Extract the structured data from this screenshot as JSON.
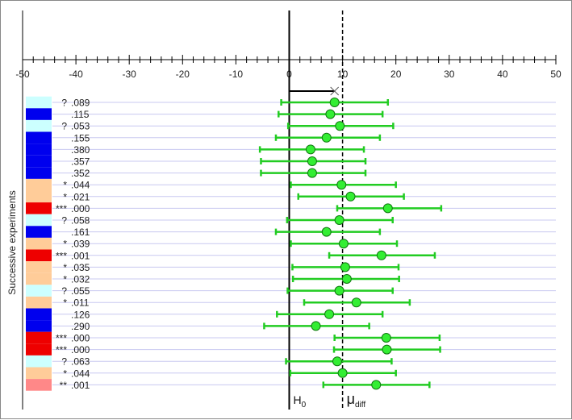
{
  "chart_data": {
    "type": "scatter",
    "x_axis": {
      "range": [
        -50,
        50
      ],
      "tick_labels": [
        "-50",
        "-40",
        "-30",
        "-20",
        "-10",
        "0",
        "10",
        "20",
        "30",
        "40",
        "50"
      ],
      "major_step": 10,
      "minor_step": 2
    },
    "ylabel": "Successive experiments",
    "reference_lines": {
      "h0": {
        "value": 0,
        "label": "H",
        "subscript": "0"
      },
      "mu_diff": {
        "value": 10,
        "label": "μ",
        "subscript": "diff"
      }
    },
    "moe_marker": {
      "from": 0,
      "to": 8.5
    },
    "status_colors": {
      "question": "#ccffff",
      "ns": "#0000ee",
      "one_star": "#ffcc99",
      "three_star": "#ee0000",
      "two_star": "#ff8888"
    },
    "experiments": [
      {
        "mark": "?",
        "p": ".089",
        "mean": 8.5,
        "low": -1.5,
        "high": 18.5,
        "status": "question"
      },
      {
        "mark": "",
        "p": ".115",
        "mean": 7.7,
        "low": -2.0,
        "high": 17.5,
        "status": "ns"
      },
      {
        "mark": "?",
        "p": ".053",
        "mean": 9.5,
        "low": -0.2,
        "high": 19.5,
        "status": "question"
      },
      {
        "mark": "",
        "p": ".155",
        "mean": 7.0,
        "low": -2.5,
        "high": 17.0,
        "status": "ns"
      },
      {
        "mark": "",
        "p": ".380",
        "mean": 4.0,
        "low": -5.5,
        "high": 14.0,
        "status": "ns"
      },
      {
        "mark": "",
        "p": ".357",
        "mean": 4.3,
        "low": -5.3,
        "high": 14.3,
        "status": "ns"
      },
      {
        "mark": "",
        "p": ".352",
        "mean": 4.3,
        "low": -5.3,
        "high": 14.3,
        "status": "ns"
      },
      {
        "mark": "*",
        "p": ".044",
        "mean": 9.8,
        "low": 0.3,
        "high": 20.0,
        "status": "one_star"
      },
      {
        "mark": "*",
        "p": ".021",
        "mean": 11.5,
        "low": 1.7,
        "high": 21.5,
        "status": "one_star"
      },
      {
        "mark": "***",
        "p": ".000",
        "mean": 18.5,
        "low": 9.0,
        "high": 28.5,
        "status": "three_star"
      },
      {
        "mark": "?",
        "p": ".058",
        "mean": 9.4,
        "low": -0.4,
        "high": 19.4,
        "status": "question"
      },
      {
        "mark": "",
        "p": ".161",
        "mean": 7.0,
        "low": -2.5,
        "high": 17.0,
        "status": "ns"
      },
      {
        "mark": "*",
        "p": ".039",
        "mean": 10.2,
        "low": 0.3,
        "high": 20.2,
        "status": "one_star"
      },
      {
        "mark": "***",
        "p": ".001",
        "mean": 17.3,
        "low": 7.5,
        "high": 27.3,
        "status": "three_star"
      },
      {
        "mark": "*",
        "p": ".035",
        "mean": 10.5,
        "low": 0.6,
        "high": 20.5,
        "status": "one_star"
      },
      {
        "mark": "*",
        "p": ".032",
        "mean": 10.8,
        "low": 0.7,
        "high": 20.6,
        "status": "one_star"
      },
      {
        "mark": "?",
        "p": ".055",
        "mean": 9.4,
        "low": -0.3,
        "high": 19.4,
        "status": "question"
      },
      {
        "mark": "*",
        "p": ".011",
        "mean": 12.6,
        "low": 2.8,
        "high": 22.6,
        "status": "one_star"
      },
      {
        "mark": "",
        "p": ".126",
        "mean": 7.5,
        "low": -2.3,
        "high": 17.5,
        "status": "ns"
      },
      {
        "mark": "",
        "p": ".290",
        "mean": 5.0,
        "low": -4.7,
        "high": 15.0,
        "status": "ns"
      },
      {
        "mark": "***",
        "p": ".000",
        "mean": 18.2,
        "low": 8.5,
        "high": 28.2,
        "status": "three_star"
      },
      {
        "mark": "***",
        "p": ".000",
        "mean": 18.3,
        "low": 8.4,
        "high": 28.3,
        "status": "three_star"
      },
      {
        "mark": "?",
        "p": ".063",
        "mean": 9.0,
        "low": -0.6,
        "high": 19.2,
        "status": "question"
      },
      {
        "mark": "*",
        "p": ".044",
        "mean": 10.0,
        "low": 0.2,
        "high": 20.0,
        "status": "one_star"
      },
      {
        "mark": "**",
        "p": ".001",
        "mean": 16.3,
        "low": 6.4,
        "high": 26.3,
        "status": "two_star"
      }
    ]
  },
  "colors": {
    "row_line": "#c8c8f0",
    "ci_line": "#22cc22",
    "point_fill": "#33ee33",
    "point_stroke": "#117711",
    "axis": "#000000"
  }
}
